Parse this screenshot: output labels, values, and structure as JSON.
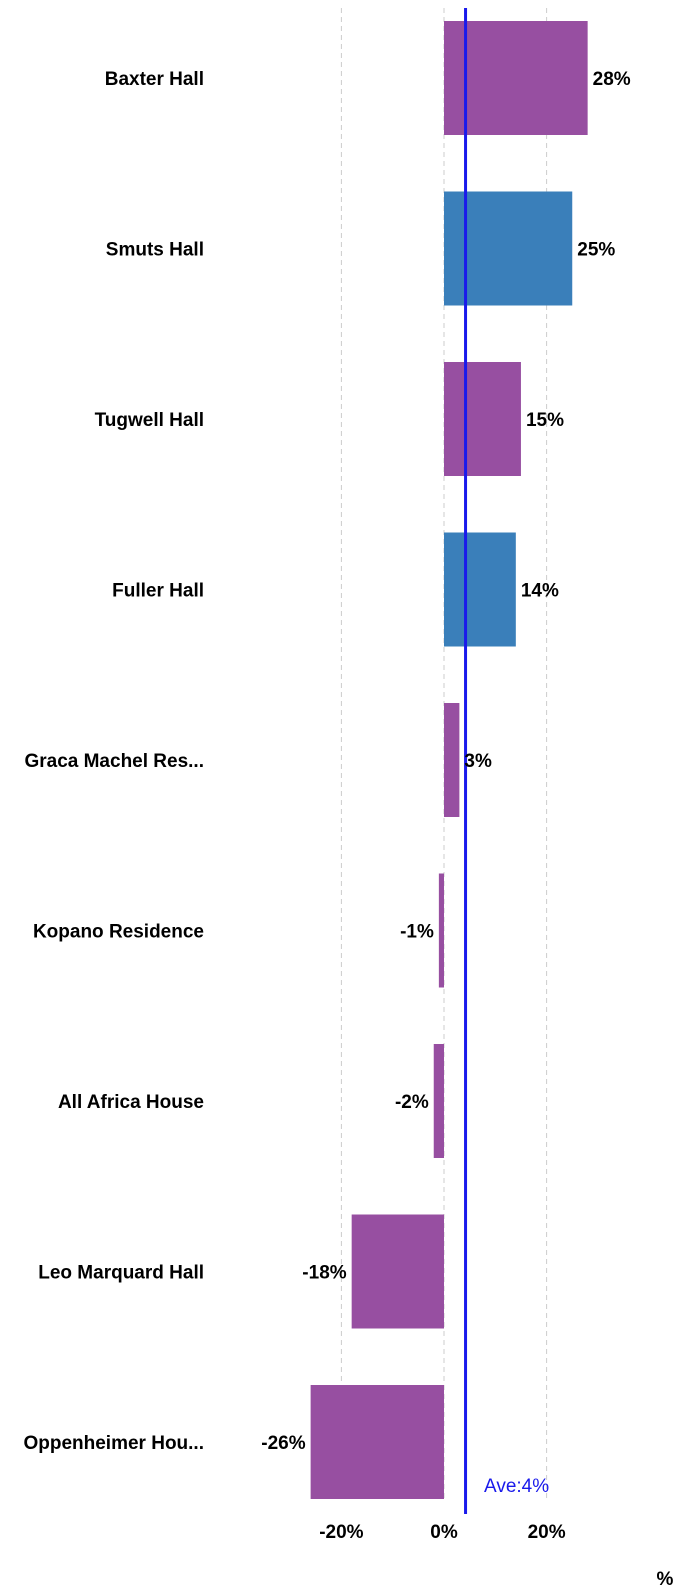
{
  "chart_data": {
    "type": "bar",
    "orientation": "horizontal",
    "categories": [
      "Baxter Hall",
      "Smuts Hall",
      "Tugwell Hall",
      "Fuller Hall",
      "Graca Machel Res...",
      "Kopano Residence",
      "All Africa House",
      "Leo Marquard Hall",
      "Oppenheimer Hou..."
    ],
    "values": [
      28,
      25,
      15,
      14,
      3,
      -1,
      -2,
      -18,
      -26
    ],
    "value_labels": [
      "28%",
      "25%",
      "15%",
      "14%",
      "3%",
      "-1%",
      "-2%",
      "-18%",
      "-26%"
    ],
    "bar_colors": [
      "#974fa1",
      "#3a7fba",
      "#974fa1",
      "#3a7fba",
      "#974fa1",
      "#974fa1",
      "#974fa1",
      "#974fa1",
      "#974fa1"
    ],
    "x_ticks": [
      -20,
      0,
      20
    ],
    "x_tick_labels": [
      "-20%",
      "0%",
      "20%"
    ],
    "xlabel": "%",
    "xlim": [
      -28,
      30
    ],
    "grid": "vertical dashed",
    "reference_line": {
      "value": 4.2,
      "label": "Ave:4%",
      "color": "#1a1aeb"
    }
  }
}
